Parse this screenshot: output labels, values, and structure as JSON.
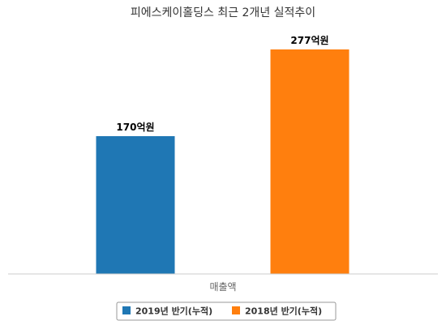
{
  "chart_data": {
    "type": "bar",
    "title": "피에스케이홀딩스 최근 2개년 실적추이",
    "categories": [
      "매출액"
    ],
    "series": [
      {
        "name": "2019년 반기(누적)",
        "values": [
          170
        ],
        "label": "170억원",
        "color": "#1f77b4"
      },
      {
        "name": "2018년 반기(누적)",
        "values": [
          277
        ],
        "label": "277억원",
        "color": "#ff7f0e"
      }
    ],
    "ylim": [
      0,
      300
    ],
    "grid": false,
    "legend": "bottom-center"
  }
}
